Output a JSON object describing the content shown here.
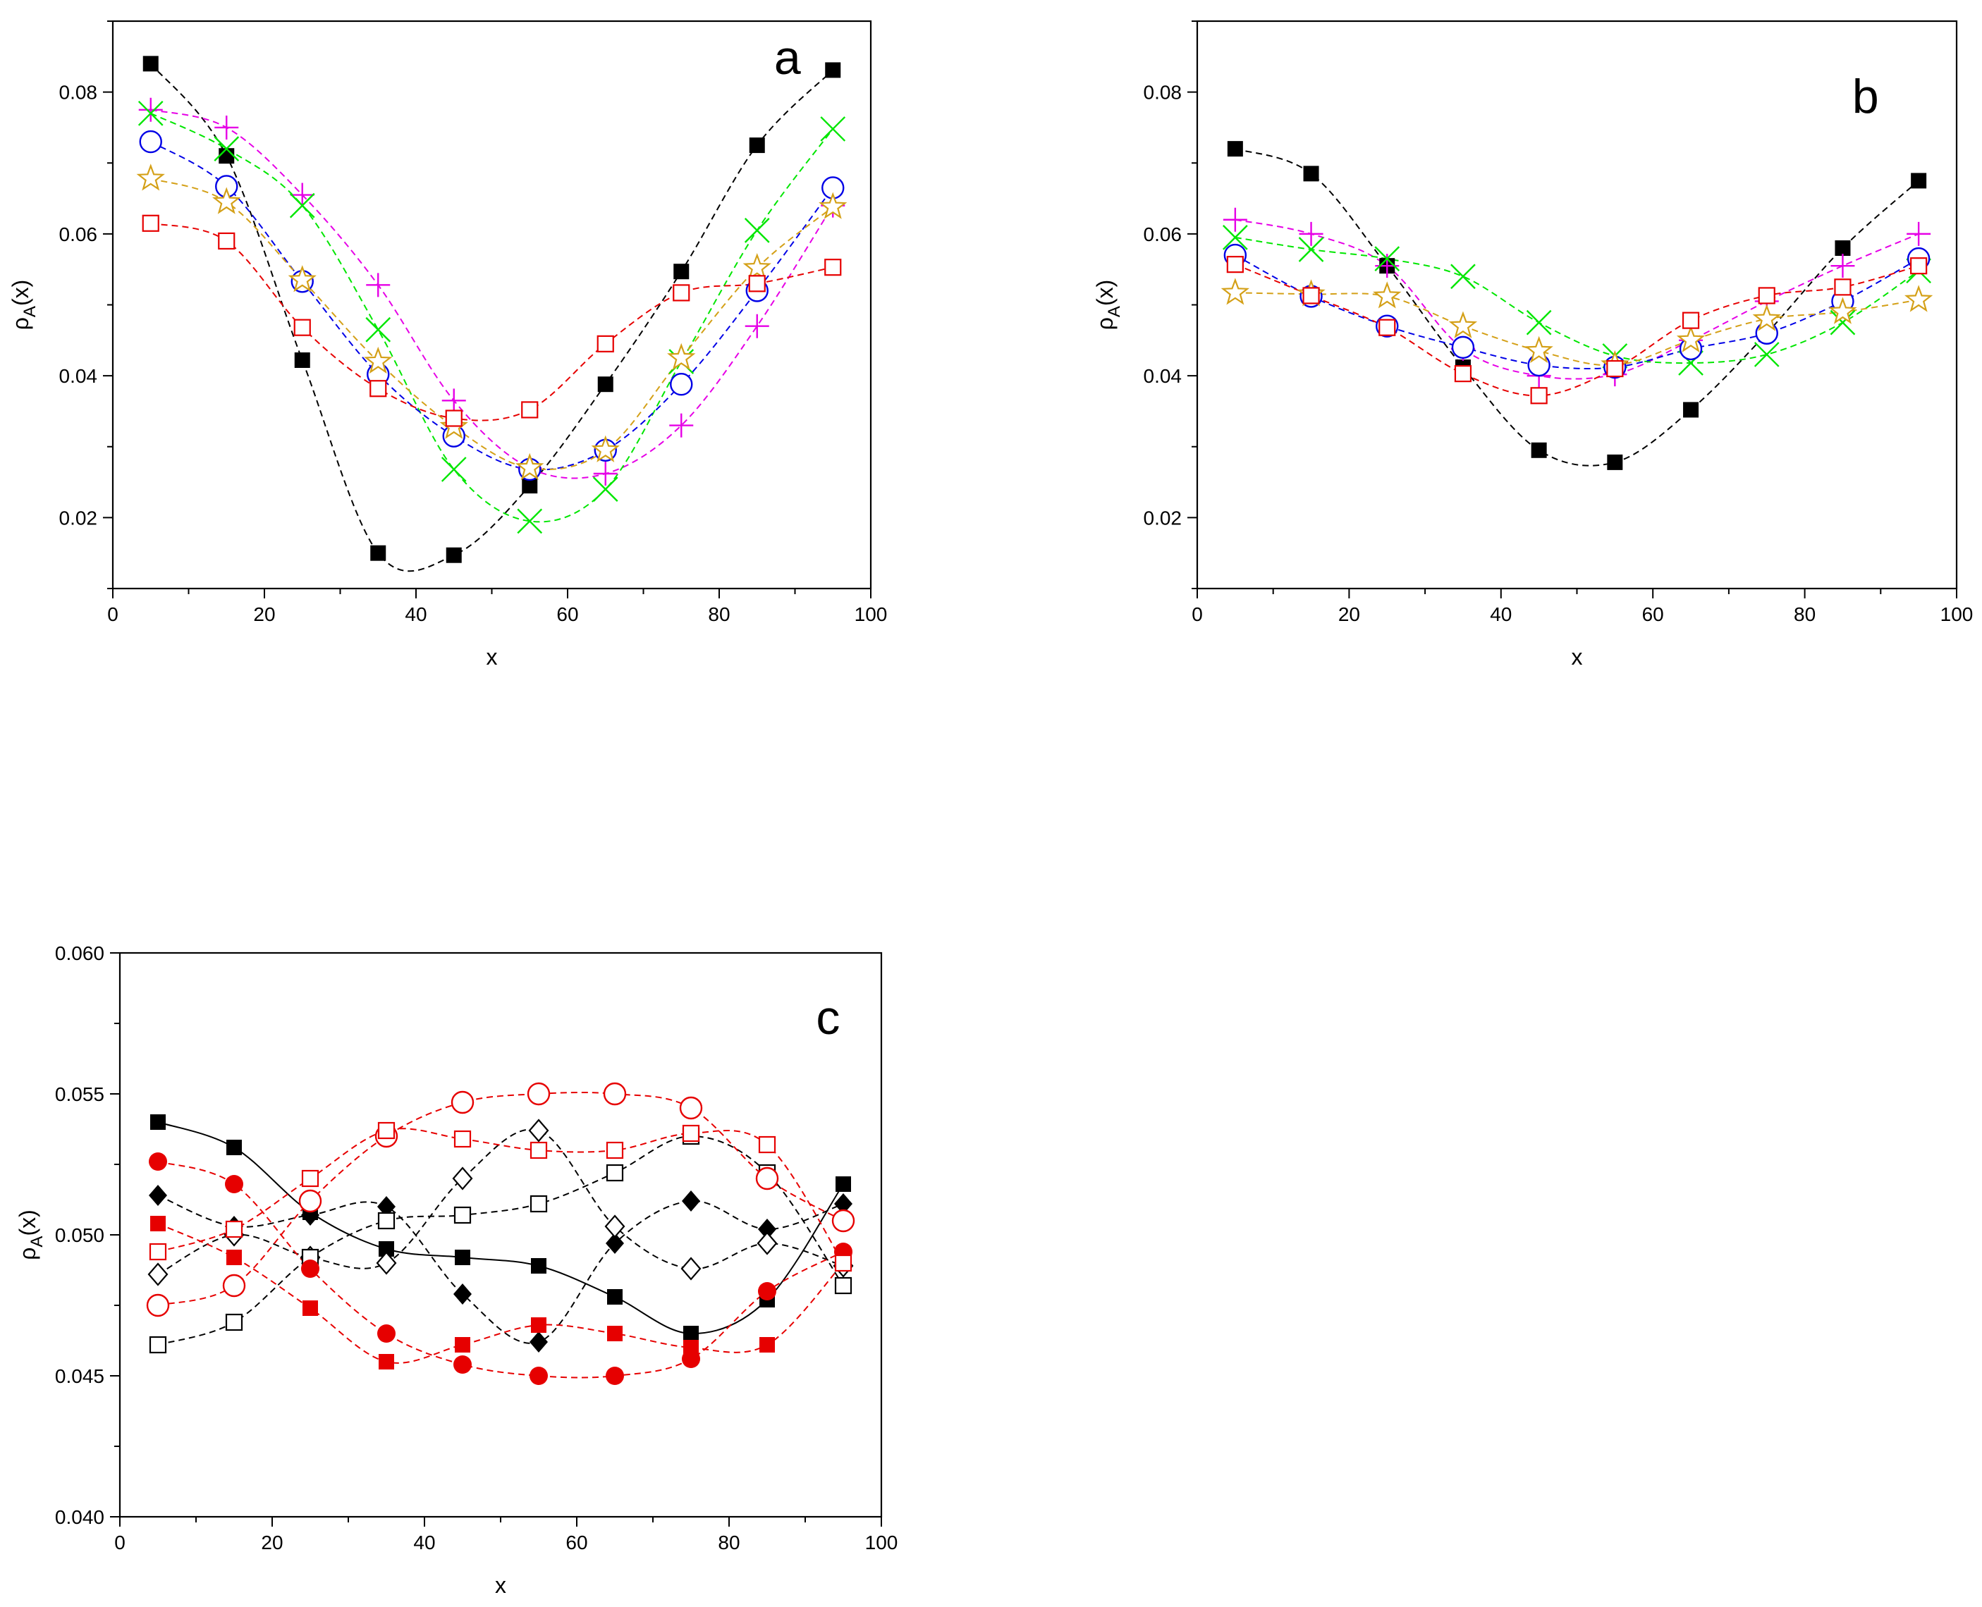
{
  "chart_data": [
    {
      "id": "a",
      "type": "scatter",
      "panel_label": "a",
      "xlabel": "x",
      "ylabel_main": "ρ",
      "ylabel_sub": "A",
      "ylabel_suffix": "(x)",
      "xlim": [
        0,
        100
      ],
      "ylim": [
        0.01,
        0.09
      ],
      "xticks": [
        0,
        20,
        40,
        60,
        80,
        100
      ],
      "xtick_labels": [
        "0",
        "20",
        "40",
        "60",
        "80",
        "100"
      ],
      "yticks": [
        0.02,
        0.04,
        0.06,
        0.08
      ],
      "ytick_labels": [
        "0.02",
        "0.04",
        "0.06",
        "0.08"
      ],
      "x": [
        5,
        15,
        25,
        35,
        45,
        55,
        65,
        75,
        85,
        95
      ],
      "series": [
        {
          "name": "filled squares",
          "marker": "square-filled",
          "color": "#000000",
          "line": "dashed",
          "values": [
            0.084,
            0.071,
            0.0422,
            0.015,
            0.0147,
            0.0245,
            0.0388,
            0.0547,
            0.0725,
            0.0831
          ]
        },
        {
          "name": "plus",
          "marker": "plus",
          "color": "#e600e6",
          "line": "dashed",
          "values": [
            0.0775,
            0.075,
            0.0655,
            0.0528,
            0.0365,
            0.027,
            0.0262,
            0.033,
            0.047,
            0.064
          ]
        },
        {
          "name": "cross",
          "marker": "cross",
          "color": "#00e600",
          "line": "dashed",
          "values": [
            0.077,
            0.072,
            0.064,
            0.0465,
            0.0268,
            0.0195,
            0.024,
            0.042,
            0.0605,
            0.0748
          ]
        },
        {
          "name": "open circles",
          "marker": "circle-open",
          "color": "#0000e6",
          "line": "dashed",
          "values": [
            0.073,
            0.0667,
            0.0533,
            0.0402,
            0.0315,
            0.0268,
            0.0295,
            0.0388,
            0.052,
            0.0665
          ]
        },
        {
          "name": "open stars",
          "marker": "star-open",
          "color": "#d4a017",
          "line": "dashed",
          "values": [
            0.0678,
            0.0645,
            0.0535,
            0.042,
            0.0328,
            0.027,
            0.0295,
            0.0425,
            0.0552,
            0.0638
          ]
        },
        {
          "name": "open squares",
          "marker": "square-open",
          "color": "#e60000",
          "line": "dashed",
          "values": [
            0.0615,
            0.059,
            0.0468,
            0.0382,
            0.034,
            0.0352,
            0.0445,
            0.0517,
            0.053,
            0.0553
          ]
        }
      ]
    },
    {
      "id": "b",
      "type": "scatter",
      "panel_label": "b",
      "xlabel": "x",
      "ylabel_main": "ρ",
      "ylabel_sub": "A",
      "ylabel_suffix": "(x)",
      "xlim": [
        0,
        100
      ],
      "ylim": [
        0.01,
        0.09
      ],
      "xticks": [
        0,
        20,
        40,
        60,
        80,
        100
      ],
      "xtick_labels": [
        "0",
        "20",
        "40",
        "60",
        "80",
        "100"
      ],
      "yticks": [
        0.02,
        0.04,
        0.06,
        0.08
      ],
      "ytick_labels": [
        "0.02",
        "0.04",
        "0.06",
        "0.08"
      ],
      "x": [
        5,
        15,
        25,
        35,
        45,
        55,
        65,
        75,
        85,
        95
      ],
      "series": [
        {
          "name": "filled squares",
          "marker": "square-filled",
          "color": "#000000",
          "line": "dashed",
          "values": [
            0.072,
            0.0685,
            0.0555,
            0.0412,
            0.0295,
            0.0278,
            0.0352,
            0.046,
            0.058,
            0.0675
          ]
        },
        {
          "name": "plus",
          "marker": "plus",
          "color": "#e600e6",
          "line": "dashed",
          "values": [
            0.062,
            0.06,
            0.0555,
            0.0438,
            0.04,
            0.0402,
            0.045,
            0.0505,
            0.0555,
            0.06
          ]
        },
        {
          "name": "cross",
          "marker": "cross",
          "color": "#00e600",
          "line": "dashed",
          "values": [
            0.0595,
            0.0578,
            0.0565,
            0.054,
            0.0475,
            0.0428,
            0.0418,
            0.043,
            0.0475,
            0.0548
          ]
        },
        {
          "name": "open circles",
          "marker": "circle-open",
          "color": "#0000e6",
          "line": "dashed",
          "values": [
            0.057,
            0.0512,
            0.047,
            0.044,
            0.0415,
            0.0412,
            0.0438,
            0.046,
            0.0505,
            0.0565
          ]
        },
        {
          "name": "open stars",
          "marker": "star-open",
          "color": "#d4a017",
          "line": "dashed",
          "values": [
            0.0517,
            0.0515,
            0.0512,
            0.047,
            0.0435,
            0.0415,
            0.045,
            0.048,
            0.049,
            0.0507
          ]
        },
        {
          "name": "open squares",
          "marker": "square-open",
          "color": "#e60000",
          "line": "dashed",
          "values": [
            0.0557,
            0.0513,
            0.0468,
            0.0403,
            0.0372,
            0.041,
            0.0478,
            0.0513,
            0.0525,
            0.0555
          ]
        }
      ]
    },
    {
      "id": "c",
      "type": "scatter",
      "panel_label": "c",
      "xlabel": "x",
      "ylabel_main": "ρ",
      "ylabel_sub": "A",
      "ylabel_suffix": "(x)",
      "xlim": [
        0,
        100
      ],
      "ylim": [
        0.04,
        0.06
      ],
      "xticks": [
        0,
        20,
        40,
        60,
        80,
        100
      ],
      "xtick_labels": [
        "0",
        "20",
        "40",
        "60",
        "80",
        "100"
      ],
      "yticks": [
        0.04,
        0.045,
        0.05,
        0.055,
        0.06
      ],
      "ytick_labels": [
        "0.040",
        "0.045",
        "0.050",
        "0.055",
        "0.060"
      ],
      "x": [
        5,
        15,
        25,
        35,
        45,
        55,
        65,
        75,
        85,
        95
      ],
      "series": [
        {
          "name": "black filled squares",
          "marker": "square-filled",
          "color": "#000000",
          "line": "solid",
          "values": [
            0.054,
            0.0531,
            0.0508,
            0.0495,
            0.0492,
            0.0489,
            0.0478,
            0.0465,
            0.0477,
            0.0518
          ]
        },
        {
          "name": "black filled diamonds",
          "marker": "diamond-filled",
          "color": "#000000",
          "line": "dashed",
          "values": [
            0.0514,
            0.0503,
            0.0507,
            0.051,
            0.0479,
            0.0462,
            0.0497,
            0.0512,
            0.0502,
            0.0511
          ]
        },
        {
          "name": "black open diamonds",
          "marker": "diamond-open",
          "color": "#000000",
          "line": "dashed",
          "values": [
            0.0486,
            0.05,
            0.0492,
            0.049,
            0.052,
            0.0537,
            0.0503,
            0.0488,
            0.0497,
            0.0489
          ]
        },
        {
          "name": "black open squares",
          "marker": "square-open",
          "color": "#000000",
          "line": "dashed",
          "values": [
            0.0461,
            0.0469,
            0.0492,
            0.0505,
            0.0507,
            0.0511,
            0.0522,
            0.0535,
            0.0522,
            0.0482
          ]
        },
        {
          "name": "red filled circles",
          "marker": "circle-filled",
          "color": "#e60000",
          "line": "dashed",
          "values": [
            0.0526,
            0.0518,
            0.0488,
            0.0465,
            0.0454,
            0.045,
            0.045,
            0.0456,
            0.048,
            0.0494
          ]
        },
        {
          "name": "red filled squares",
          "marker": "square-filled",
          "color": "#e60000",
          "line": "dashed",
          "values": [
            0.0504,
            0.0492,
            0.0474,
            0.0455,
            0.0461,
            0.0468,
            0.0465,
            0.046,
            0.0461,
            0.049
          ]
        },
        {
          "name": "red open circles",
          "marker": "circle-open",
          "color": "#e60000",
          "line": "dashed",
          "values": [
            0.0475,
            0.0482,
            0.0512,
            0.0535,
            0.0547,
            0.055,
            0.055,
            0.0545,
            0.052,
            0.0505
          ]
        },
        {
          "name": "red open squares",
          "marker": "square-open",
          "color": "#e60000",
          "line": "dashed",
          "values": [
            0.0494,
            0.0502,
            0.052,
            0.0537,
            0.0534,
            0.053,
            0.053,
            0.0536,
            0.0532,
            0.049
          ]
        }
      ]
    }
  ]
}
